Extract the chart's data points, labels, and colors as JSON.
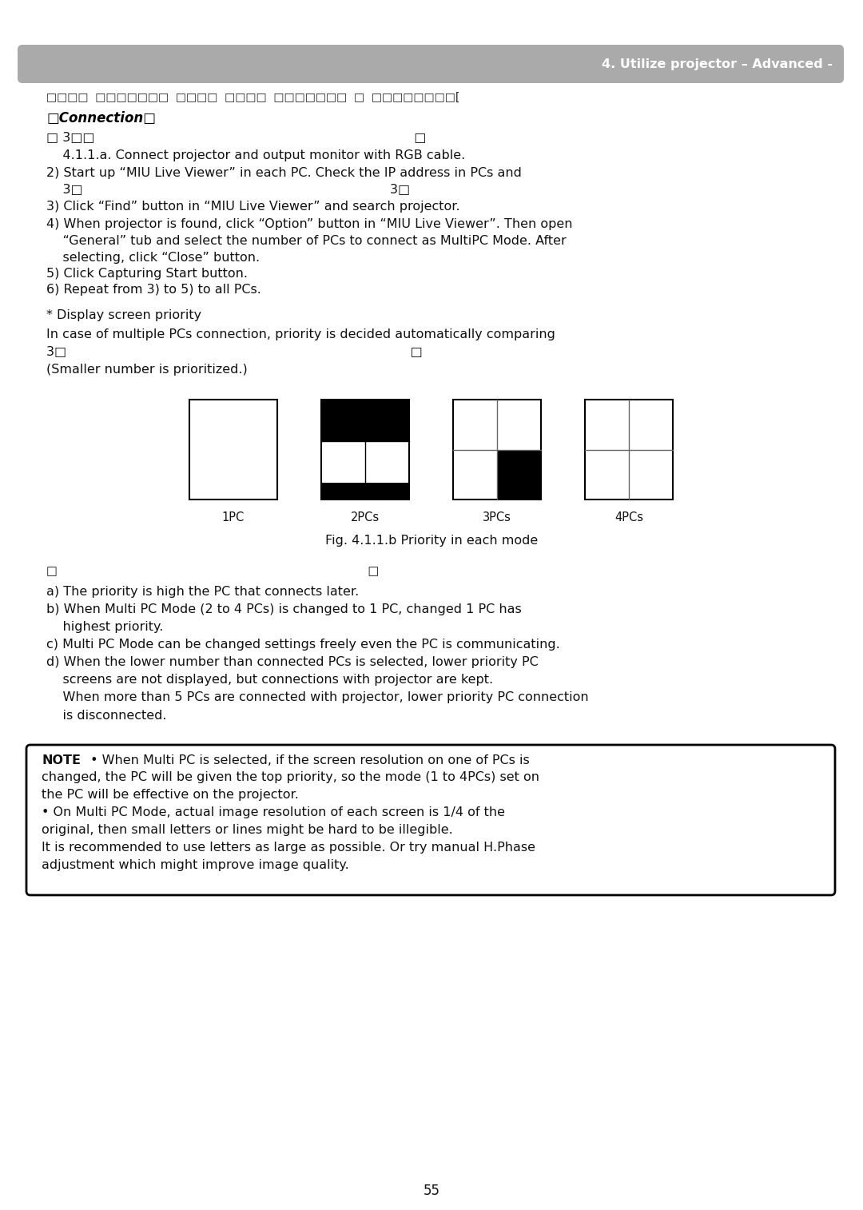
{
  "header_text": "4. Utilize projector – Advanced -",
  "header_bg": "#aaaaaa",
  "page_bg": "#ffffff",
  "page_number": "55",
  "corrupt_line": "□□□□  □□□□□□□  □□□□  □□□□  □□□□□□□  □  □□□□□□□□[",
  "section_title": "□Connection□",
  "line0": "□ 3□□                                                                              □",
  "line0b": "    4.1.1.a. Connect projector and output monitor with RGB cable.",
  "line1": "2) Start up “MIU Live Viewer” in each PC. Check the IP address in PCs and",
  "line1b": "    3□                                                                           3□",
  "line2": "3) Click “Find” button in “MIU Live Viewer” and search projector.",
  "line3": "4) When projector is found, click “Option” button in “MIU Live Viewer”. Then open",
  "line3b": "    “General” tub and select the number of PCs to connect as MultiPC Mode. After",
  "line3c": "    selecting, click “Close” button.",
  "line4": "5) Click Capturing Start button.",
  "line5": "6) Repeat from 3) to 5) to all PCs.",
  "priority_note1": "* Display screen priority",
  "priority_note2": "In case of multiple PCs connection, priority is decided automatically comparing",
  "priority_note3": "3□                                                                                    □",
  "priority_note4": "(Smaller number is prioritized.)",
  "fig_caption": "Fig. 4.1.1.b Priority in each mode",
  "pc_labels": [
    "1PC",
    "2PCs",
    "3PCs",
    "4PCs"
  ],
  "sub_note_line1": "□                                                                                    □",
  "sub_items": [
    "a) The priority is high the PC that connects later.",
    "b) When Multi PC Mode (2 to 4 PCs) is changed to 1 PC, changed 1 PC has",
    "    highest priority.",
    "c) Multi PC Mode can be changed settings freely even the PC is communicating.",
    "d) When the lower number than connected PCs is selected, lower priority PC",
    "    screens are not displayed, but connections with projector are kept.",
    "    When more than 5 PCs are connected with projector, lower priority PC connection",
    "    is disconnected."
  ],
  "note_line0": "NOTE  • When Multi PC is selected, if the screen resolution on one of PCs is",
  "note_line1": "changed, the PC will be given the top priority, so the mode (1 to 4PCs) set on",
  "note_line2": "the PC will be effective on the projector.",
  "note_line3": "• On Multi PC Mode, actual image resolution of each screen is 1/4 of the",
  "note_line4": "original, then small letters or lines might be hard to be illegible.",
  "note_line5": "It is recommended to use letters as large as possible. Or try manual H.Phase",
  "note_line6": "adjustment which might improve image quality."
}
